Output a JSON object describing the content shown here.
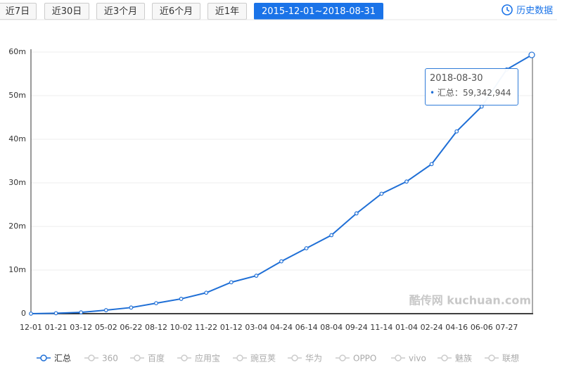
{
  "ui": {
    "tabs": [
      "近7日",
      "近30日",
      "近3个月",
      "近6个月",
      "近1年",
      "2015-12-01~2018-08-31"
    ],
    "history": "历史数据",
    "watermark": "酷传网 kuchuan.com"
  },
  "chart_data": {
    "type": "line",
    "categories": [
      "12-01",
      "01-21",
      "03-12",
      "05-02",
      "06-22",
      "08-12",
      "10-02",
      "11-22",
      "01-12",
      "03-04",
      "04-24",
      "06-14",
      "08-04",
      "09-24",
      "11-14",
      "01-04",
      "02-24",
      "04-16",
      "06-06",
      "07-27",
      null
    ],
    "series": [
      {
        "name": "汇总",
        "color": "#1f6fd6",
        "values": [
          0,
          100000,
          300000,
          800000,
          1400000,
          2400000,
          3400000,
          4800000,
          7200000,
          8700000,
          12000000,
          15000000,
          18000000,
          23000000,
          27500000,
          30300000,
          34300000,
          41800000,
          47500000,
          56000000,
          59342944
        ],
        "value_labels": [
          null,
          null,
          null,
          null,
          null,
          null,
          null,
          null,
          null,
          null,
          null,
          null,
          null,
          null,
          null,
          null,
          null,
          null,
          null,
          null,
          "59,342,944"
        ]
      }
    ],
    "inactive_series": [
      "360",
      "百度",
      "应用宝",
      "豌豆荚",
      "华为",
      "OPPO",
      "vivo",
      "魅族",
      "联想"
    ],
    "tooltip_date": "2018-08-30",
    "ylim": [
      0,
      60000000
    ],
    "yticks": [
      0,
      {
        "value": 10000000,
        "label": "10m"
      },
      {
        "value": 20000000,
        "label": "20m"
      },
      {
        "value": 30000000,
        "label": "30m"
      },
      {
        "value": 40000000,
        "label": "40m"
      },
      {
        "value": 50000000,
        "label": "50m"
      },
      {
        "value": 60000000,
        "label": "60m"
      }
    ],
    "grid": true
  }
}
